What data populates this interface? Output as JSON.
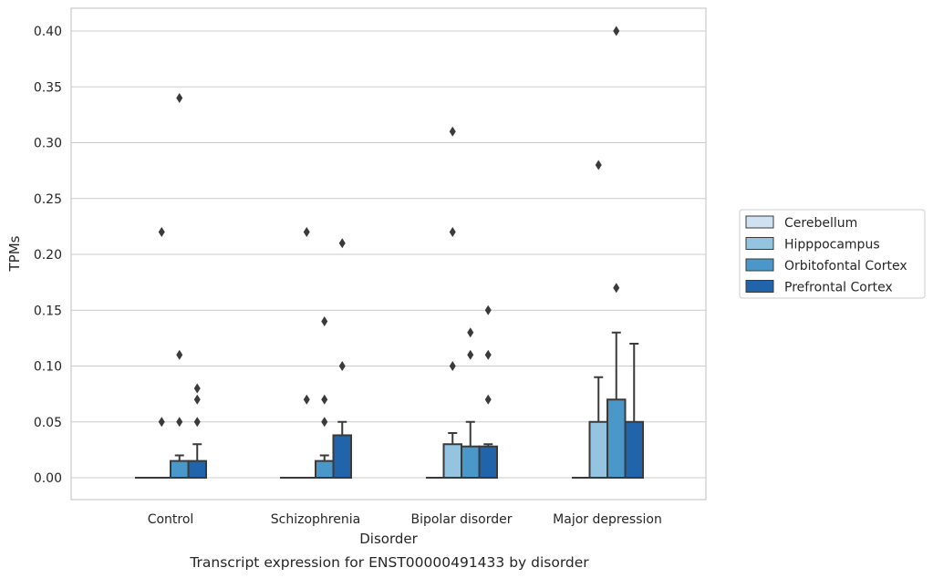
{
  "chart_data": {
    "type": "bar",
    "caption": "Transcript expression for ENST00000491433 by disorder",
    "xlabel": "Disorder",
    "ylabel": "TPMs",
    "ylim": [
      -0.02,
      0.42
    ],
    "yticks": [
      0.0,
      0.05,
      0.1,
      0.15,
      0.2,
      0.25,
      0.3,
      0.35,
      0.4
    ],
    "ytick_labels": [
      "0.00",
      "0.05",
      "0.10",
      "0.15",
      "0.20",
      "0.25",
      "0.30",
      "0.35",
      "0.40"
    ],
    "grid": true,
    "legend_position": "right",
    "categories": [
      "Control",
      "Schizophrenia",
      "Bipolar disorder",
      "Major depression"
    ],
    "series": [
      {
        "name": "Cerebellum",
        "color": "#d0e1f2",
        "values": [
          0,
          0,
          0,
          0
        ],
        "whisker_high": [
          0,
          0,
          0,
          0
        ],
        "outliers": [
          [],
          [],
          [],
          []
        ]
      },
      {
        "name": "Hipppocampus",
        "color": "#94c4df",
        "values": [
          0,
          0,
          0.03,
          0.05
        ],
        "whisker_high": [
          0,
          0,
          0.04,
          0.09
        ],
        "outliers": [
          [
            0.05,
            0.22
          ],
          [
            0.07,
            0.22
          ],
          [
            0.1,
            0.22,
            0.31
          ],
          [
            0.28
          ]
        ]
      },
      {
        "name": "Orbitofontal Cortex",
        "color": "#4a98c9",
        "values": [
          0.015,
          0.015,
          0.028,
          0.07
        ],
        "whisker_high": [
          0.02,
          0.02,
          0.05,
          0.13
        ],
        "outliers": [
          [
            0.05,
            0.11,
            0.34
          ],
          [
            0.05,
            0.07,
            0.14
          ],
          [
            0.11,
            0.13
          ],
          [
            0.17,
            0.4
          ]
        ]
      },
      {
        "name": "Prefrontal Cortex",
        "color": "#2164ab",
        "values": [
          0.015,
          0.038,
          0.028,
          0.05
        ],
        "whisker_high": [
          0.03,
          0.05,
          0.03,
          0.12
        ],
        "outliers": [
          [
            0.05,
            0.07,
            0.08
          ],
          [
            0.1,
            0.21
          ],
          [
            0.07,
            0.11,
            0.15
          ],
          []
        ]
      }
    ]
  }
}
